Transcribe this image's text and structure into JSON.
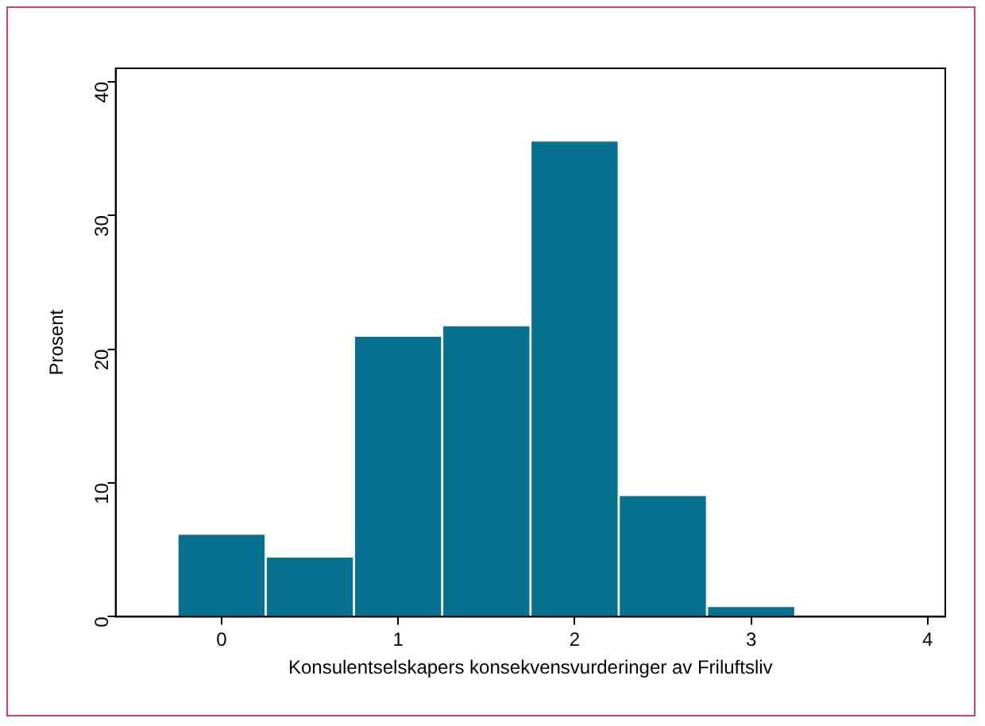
{
  "chart_data": {
    "type": "histogram",
    "xlabel": "Konsulentselskapers konsekvensvurderinger av Friluftsliv",
    "ylabel": "Prosent",
    "bins": [
      -0.25,
      0.25,
      0.75,
      1.25,
      1.75,
      2.25,
      2.75,
      3.25
    ],
    "values": [
      6.2,
      4.5,
      21,
      21.8,
      35.6,
      9.1,
      0.8
    ],
    "color": "#06728f",
    "xlim": [
      -0.6,
      4.1
    ],
    "xticks": [
      0,
      1,
      2,
      3,
      4
    ],
    "ylim": [
      0,
      41
    ],
    "yticks": [
      0,
      10,
      20,
      30,
      40
    ],
    "grid": false,
    "legend": false
  }
}
